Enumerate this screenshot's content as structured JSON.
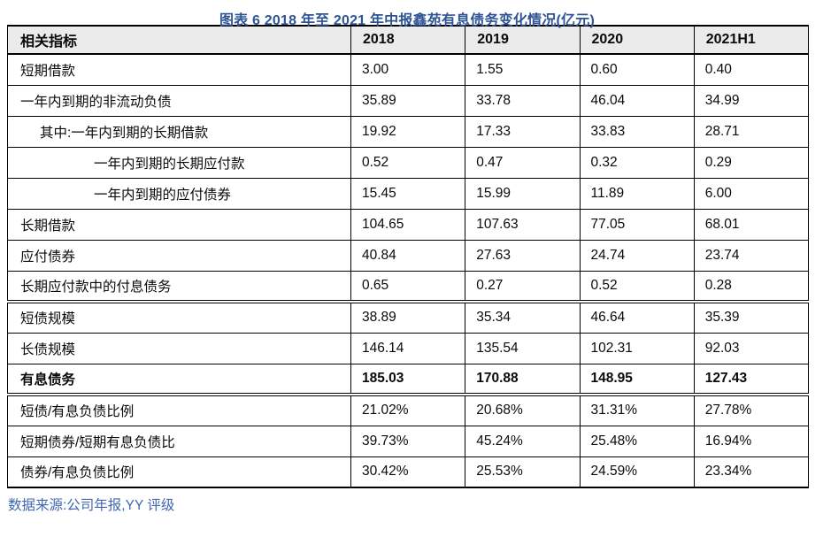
{
  "title": "图表 6 2018 年至 2021 年中报鑫苑有息债务变化情况(亿元)",
  "source": "数据来源:公司年报,YY 评级",
  "colors": {
    "title_blue": "#2F5496",
    "source_blue": "#4067B1",
    "header_bg": "#EBEBEB",
    "border": "#000000"
  },
  "table": {
    "columns": [
      "相关指标",
      "2018",
      "2019",
      "2020",
      "2021H1"
    ],
    "rows": [
      {
        "label": "短期借款",
        "indent": 0,
        "bold": false,
        "separator": "single",
        "values": [
          "3.00",
          "1.55",
          "0.60",
          "0.40"
        ]
      },
      {
        "label": "一年内到期的非流动负债",
        "indent": 0,
        "bold": false,
        "separator": "single",
        "values": [
          "35.89",
          "33.78",
          "46.04",
          "34.99"
        ]
      },
      {
        "label": "其中:一年内到期的长期借款",
        "indent": 1,
        "bold": false,
        "separator": "single",
        "values": [
          "19.92",
          "17.33",
          "33.83",
          "28.71"
        ]
      },
      {
        "label": "一年内到期的长期应付款",
        "indent": 2,
        "bold": false,
        "separator": "single",
        "values": [
          "0.52",
          "0.47",
          "0.32",
          "0.29"
        ]
      },
      {
        "label": "一年内到期的应付债券",
        "indent": 2,
        "bold": false,
        "separator": "single",
        "values": [
          "15.45",
          "15.99",
          "11.89",
          "6.00"
        ]
      },
      {
        "label": "长期借款",
        "indent": 0,
        "bold": false,
        "separator": "single",
        "values": [
          "104.65",
          "107.63",
          "77.05",
          "68.01"
        ]
      },
      {
        "label": "应付债券",
        "indent": 0,
        "bold": false,
        "separator": "single",
        "values": [
          "40.84",
          "27.63",
          "24.74",
          "23.74"
        ]
      },
      {
        "label": "长期应付款中的付息债务",
        "indent": 0,
        "bold": false,
        "separator": "double",
        "values": [
          "0.65",
          "0.27",
          "0.52",
          "0.28"
        ]
      },
      {
        "label": "短债规模",
        "indent": 0,
        "bold": false,
        "separator": "single",
        "values": [
          "38.89",
          "35.34",
          "46.64",
          "35.39"
        ]
      },
      {
        "label": "长债规模",
        "indent": 0,
        "bold": false,
        "separator": "single",
        "values": [
          "146.14",
          "135.54",
          "102.31",
          "92.03"
        ]
      },
      {
        "label": "有息债务",
        "indent": 0,
        "bold": true,
        "separator": "double",
        "values": [
          "185.03",
          "170.88",
          "148.95",
          "127.43"
        ]
      },
      {
        "label": "短债/有息负债比例",
        "indent": 0,
        "bold": false,
        "separator": "single",
        "values": [
          "21.02%",
          "20.68%",
          "31.31%",
          "27.78%"
        ]
      },
      {
        "label": "短期债券/短期有息负债比",
        "indent": 0,
        "bold": false,
        "separator": "single",
        "values": [
          "39.73%",
          "45.24%",
          "25.48%",
          "16.94%"
        ]
      },
      {
        "label": "债券/有息负债比例",
        "indent": 0,
        "bold": false,
        "separator": "single",
        "values": [
          "30.42%",
          "25.53%",
          "24.59%",
          "23.34%"
        ]
      }
    ]
  }
}
